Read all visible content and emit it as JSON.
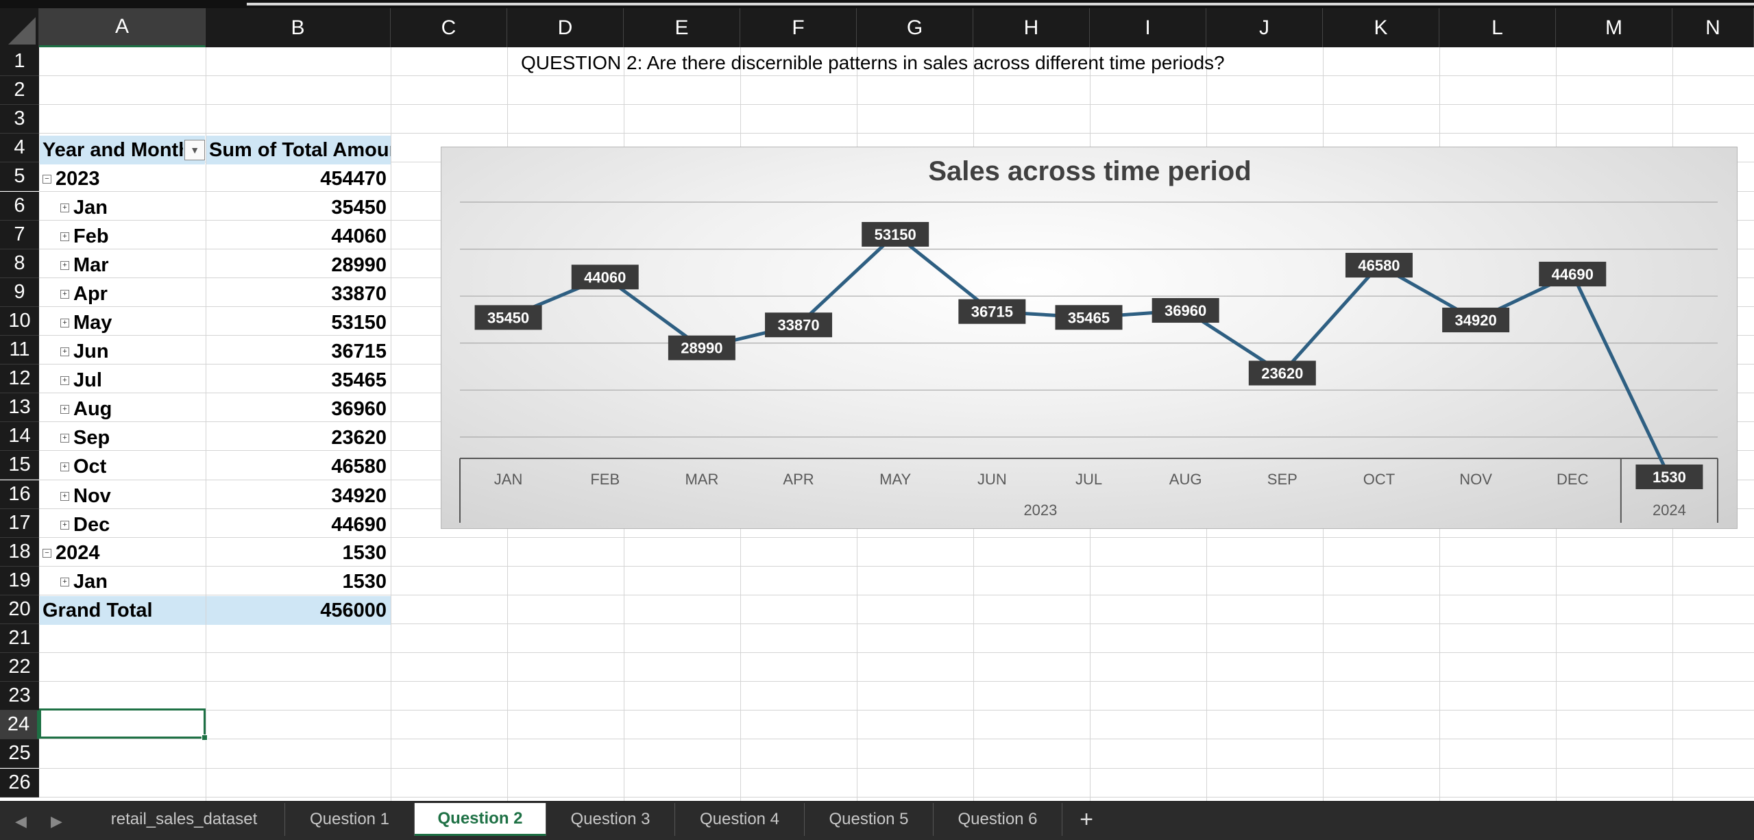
{
  "columns": [
    "A",
    "B",
    "C",
    "D",
    "E",
    "F",
    "G",
    "H",
    "I",
    "J",
    "K",
    "L",
    "M",
    "N"
  ],
  "rows": [
    "1",
    "2",
    "3",
    "4",
    "5",
    "6",
    "7",
    "8",
    "9",
    "10",
    "11",
    "12",
    "13",
    "14",
    "15",
    "16",
    "17",
    "18",
    "19",
    "20",
    "21",
    "22",
    "23",
    "24",
    "25",
    "26"
  ],
  "selected_cell": {
    "column": "A",
    "row": "24"
  },
  "question_title": "QUESTION 2: Are there discernible patterns in sales across different time periods?",
  "pivot": {
    "header_label": "Year and Months",
    "header_value": "Sum of Total Amount",
    "year_2023": {
      "label": "2023",
      "value": "454470"
    },
    "months_2023": [
      {
        "label": "Jan",
        "value": "35450"
      },
      {
        "label": "Feb",
        "value": "44060"
      },
      {
        "label": "Mar",
        "value": "28990"
      },
      {
        "label": "Apr",
        "value": "33870"
      },
      {
        "label": "May",
        "value": "53150"
      },
      {
        "label": "Jun",
        "value": "36715"
      },
      {
        "label": "Jul",
        "value": "35465"
      },
      {
        "label": "Aug",
        "value": "36960"
      },
      {
        "label": "Sep",
        "value": "23620"
      },
      {
        "label": "Oct",
        "value": "46580"
      },
      {
        "label": "Nov",
        "value": "34920"
      },
      {
        "label": "Dec",
        "value": "44690"
      }
    ],
    "year_2024": {
      "label": "2024",
      "value": "1530"
    },
    "months_2024": [
      {
        "label": "Jan",
        "value": "1530"
      }
    ],
    "grand_total": {
      "label": "Grand Total",
      "value": "456000"
    }
  },
  "chart_data": {
    "type": "line",
    "title": "Sales across time period",
    "categories": [
      "JAN",
      "FEB",
      "MAR",
      "APR",
      "MAY",
      "JUN",
      "JUL",
      "AUG",
      "SEP",
      "OCT",
      "NOV",
      "DEC",
      "JAN"
    ],
    "groups": [
      {
        "label": "2023",
        "count": 12
      },
      {
        "label": "2024",
        "count": 1
      }
    ],
    "series": [
      {
        "values": [
          35450,
          44060,
          28990,
          33870,
          53150,
          36715,
          35465,
          36960,
          23620,
          46580,
          34920,
          44690,
          1530
        ]
      }
    ],
    "data_labels": true,
    "ylim": [
      0,
      60000
    ],
    "gridlines": true,
    "line_color": "#2e5f82",
    "label_background": "#3a3a3a"
  },
  "tabs": {
    "items": [
      "retail_sales_dataset",
      "Question 1",
      "Question 2",
      "Question 3",
      "Question 4",
      "Question 5",
      "Question 6"
    ],
    "active": "Question 2",
    "add_label": "+"
  }
}
